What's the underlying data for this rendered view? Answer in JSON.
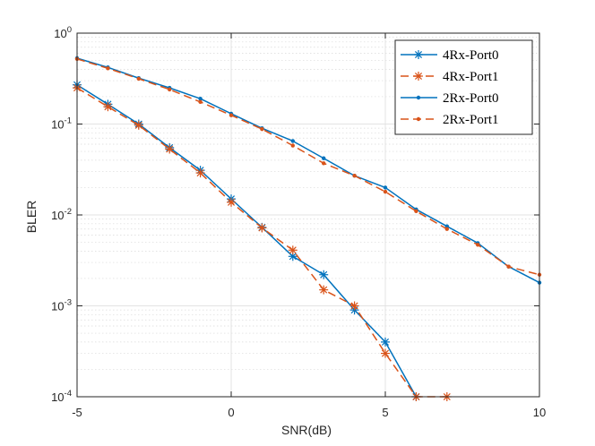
{
  "chart_data": {
    "type": "line",
    "xlabel": "SNR(dB)",
    "ylabel": "BLER",
    "xscale": "linear",
    "yscale": "log",
    "xlim": [
      -5,
      10
    ],
    "ylim": [
      0.0001,
      1
    ],
    "x_ticks": [
      -5,
      0,
      5,
      10
    ],
    "y_ticks": [
      {
        "value": 1,
        "base": "10",
        "exp": "0"
      },
      {
        "value": 0.1,
        "base": "10",
        "exp": "-1"
      },
      {
        "value": 0.01,
        "base": "10",
        "exp": "-2"
      },
      {
        "value": 0.001,
        "base": "10",
        "exp": "-3"
      },
      {
        "value": 0.0001,
        "base": "10",
        "exp": "-4"
      }
    ],
    "grid": true,
    "minor_grid": true,
    "legend_position": "top-right",
    "series": [
      {
        "name": "4Rx-Port0",
        "color": "#0072BD",
        "line_style": "solid",
        "marker": "asterisk",
        "x": [
          -5,
          -4,
          -3,
          -2,
          -1,
          0,
          1,
          2,
          3,
          4,
          5,
          6
        ],
        "y": [
          0.27,
          0.165,
          0.1,
          0.055,
          0.031,
          0.015,
          0.0073,
          0.0035,
          0.0022,
          0.0009,
          0.0004,
          0.0001
        ]
      },
      {
        "name": "4Rx-Port1",
        "color": "#D95319",
        "line_style": "dashed",
        "marker": "asterisk",
        "x": [
          -5,
          -4,
          -3,
          -2,
          -1,
          0,
          1,
          2,
          3,
          4,
          5,
          6,
          7
        ],
        "y": [
          0.25,
          0.155,
          0.097,
          0.053,
          0.029,
          0.0138,
          0.0072,
          0.0041,
          0.0015,
          0.001,
          0.0003,
          0.0001,
          0.0001
        ]
      },
      {
        "name": "2Rx-Port0",
        "color": "#0072BD",
        "line_style": "solid",
        "marker": "dot",
        "x": [
          -5,
          -4,
          -3,
          -2,
          -1,
          0,
          1,
          2,
          3,
          4,
          5,
          6,
          7,
          8,
          9,
          10
        ],
        "y": [
          0.53,
          0.42,
          0.32,
          0.25,
          0.19,
          0.13,
          0.09,
          0.065,
          0.042,
          0.027,
          0.02,
          0.0115,
          0.0075,
          0.0049,
          0.0027,
          0.0018
        ]
      },
      {
        "name": "2Rx-Port1",
        "color": "#D95319",
        "line_style": "dashed",
        "marker": "dot",
        "x": [
          -5,
          -4,
          -3,
          -2,
          -1,
          0,
          1,
          2,
          3,
          4,
          5,
          6,
          7,
          8,
          9,
          10
        ],
        "y": [
          0.52,
          0.41,
          0.315,
          0.24,
          0.175,
          0.125,
          0.088,
          0.058,
          0.037,
          0.027,
          0.018,
          0.011,
          0.007,
          0.0047,
          0.0027,
          0.0022
        ]
      }
    ]
  }
}
